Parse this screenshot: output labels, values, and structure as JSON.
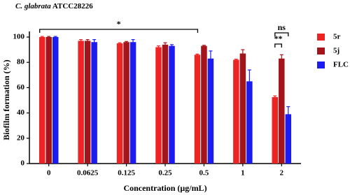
{
  "chart_data": {
    "type": "bar",
    "title": {
      "species": "C. glabrata",
      "strain": "ATCC28226"
    },
    "x_label": "Concentration (μg/mL)",
    "y_label": "Biofilm formation (%)",
    "categories": [
      "0",
      "0.0625",
      "0.125",
      "0.25",
      "0.5",
      "1",
      "2"
    ],
    "series": [
      {
        "name": "5r",
        "color": "#ee2424",
        "values": [
          100,
          97,
          95,
          92,
          86,
          82,
          52.5
        ],
        "errors": [
          0.5,
          1,
          0.5,
          1,
          0.5,
          0.5,
          1
        ]
      },
      {
        "name": "5j",
        "color": "#a3151b",
        "values": [
          100,
          97,
          96,
          94,
          93,
          87,
          83
        ],
        "errors": [
          0.5,
          1,
          0.5,
          1.5,
          0.5,
          3,
          3
        ]
      },
      {
        "name": "FLC",
        "color": "#1c1cf0",
        "values": [
          100,
          96,
          96,
          93,
          83,
          65,
          39
        ],
        "errors": [
          0.5,
          2,
          2,
          1,
          6,
          9,
          6
        ]
      }
    ],
    "annotations": [
      "*",
      "**",
      "ns"
    ],
    "ylim": [
      0,
      100
    ],
    "yticks": [
      0,
      20,
      40,
      60,
      80,
      100
    ],
    "legend": "right"
  }
}
